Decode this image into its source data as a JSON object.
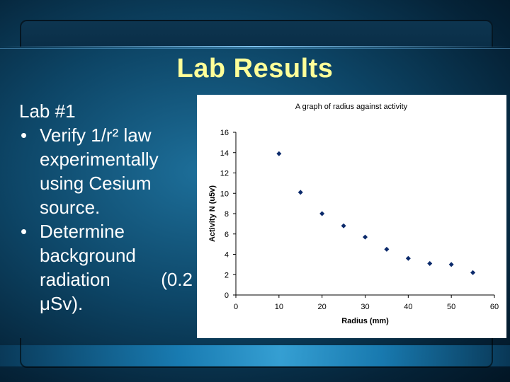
{
  "slide": {
    "title": "Lab Results",
    "heading": "Lab #1",
    "bullets": [
      {
        "lines": [
          "Verify 1/r² law",
          "experimentally",
          "using Cesium",
          "source."
        ]
      },
      {
        "lines": [
          "Determine",
          "background",
          "radiation (0.2",
          "μSv)."
        ]
      }
    ],
    "colors": {
      "title": "#ffff99",
      "text": "#ffffff",
      "background": "#0d4566",
      "marker": "#0b2a6b"
    }
  },
  "chart_data": {
    "type": "scatter",
    "title": "A graph of radius against activity",
    "xlabel": "Radius (mm)",
    "ylabel": "Activity N (u5v)",
    "xlim": [
      0,
      60
    ],
    "ylim": [
      0,
      16
    ],
    "xticks": [
      0,
      10,
      20,
      30,
      40,
      50,
      60
    ],
    "yticks": [
      0,
      2,
      4,
      6,
      8,
      10,
      12,
      14,
      16
    ],
    "grid": false,
    "x": [
      10,
      15,
      20,
      25,
      30,
      35,
      40,
      45,
      50,
      55
    ],
    "y": [
      13.9,
      10.1,
      8.0,
      6.8,
      5.7,
      4.5,
      3.6,
      3.1,
      3.0,
      2.2
    ]
  }
}
